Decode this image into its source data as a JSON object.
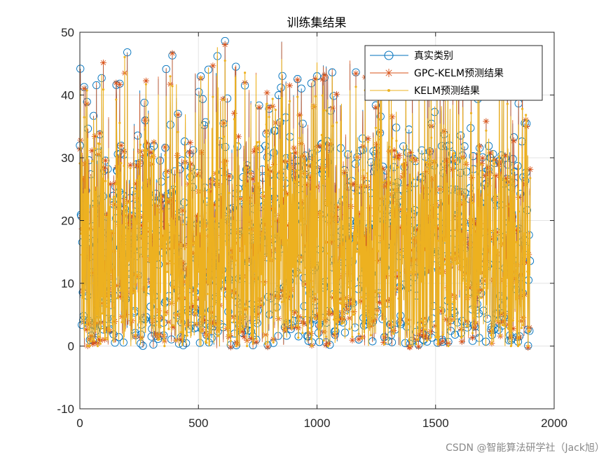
{
  "chart_data": {
    "type": "line",
    "title": "训练集结果",
    "xlabel": "",
    "ylabel": "",
    "xlim": [
      0,
      2000
    ],
    "ylim": [
      -10,
      50
    ],
    "xticks": [
      "0",
      "500",
      "1000",
      "1500",
      "2000"
    ],
    "yticks": [
      "-10",
      "0",
      "10",
      "20",
      "30",
      "40",
      "50"
    ],
    "grid": true,
    "legend_position": "top-right",
    "n_points": 1900,
    "series": [
      {
        "name": "真实类别",
        "marker": "circle",
        "color": "#0072BD"
      },
      {
        "name": "GPC-KELM预测结果",
        "marker": "asterisk",
        "color": "#D95319"
      },
      {
        "name": "KELM预测结果",
        "marker": "dot",
        "color": "#EDB120"
      }
    ]
  },
  "watermark": "CSDN @智能算法研学社（Jack旭）"
}
